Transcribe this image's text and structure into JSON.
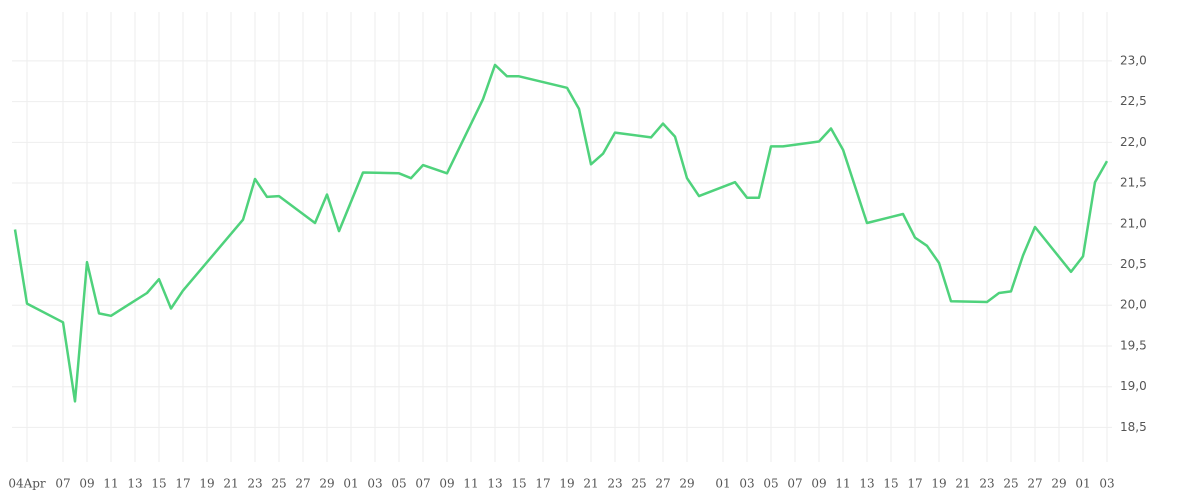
{
  "chart_data": {
    "type": "line",
    "series": [
      {
        "color": "#4fd27c",
        "x": [
          "04-03",
          "04-04",
          "04-07",
          "04-08",
          "04-09",
          "04-10",
          "04-11",
          "04-14",
          "04-15",
          "04-16",
          "04-17",
          "04-22",
          "04-23",
          "04-24",
          "04-25",
          "04-28",
          "04-29",
          "04-30",
          "05-02",
          "05-05",
          "05-06",
          "05-07",
          "05-09",
          "05-12",
          "05-13",
          "05-14",
          "05-15",
          "05-19",
          "05-20",
          "05-21",
          "05-22",
          "05-23",
          "05-26",
          "05-27",
          "05-28",
          "05-29",
          "05-30",
          "06-02",
          "06-03",
          "06-04",
          "06-05",
          "06-06",
          "06-09",
          "06-10",
          "06-11",
          "06-13",
          "06-16",
          "06-17",
          "06-18",
          "06-19",
          "06-20",
          "06-23",
          "06-24",
          "06-25",
          "06-26",
          "06-27",
          "06-30",
          "07-01",
          "07-02",
          "07-03"
        ],
        "values": [
          20.93,
          20.02,
          19.79,
          18.82,
          20.53,
          19.9,
          19.87,
          20.15,
          20.32,
          19.96,
          20.18,
          21.05,
          21.55,
          21.33,
          21.34,
          21.01,
          21.36,
          20.91,
          21.63,
          21.62,
          21.56,
          21.72,
          21.62,
          22.53,
          22.95,
          22.81,
          22.81,
          22.67,
          22.41,
          21.73,
          21.86,
          22.12,
          22.06,
          22.23,
          22.07,
          21.56,
          21.34,
          21.51,
          21.32,
          21.32,
          21.95,
          21.95,
          22.01,
          22.17,
          21.91,
          21.01,
          21.12,
          20.83,
          20.73,
          20.52,
          20.05,
          20.04,
          20.15,
          20.17,
          20.61,
          20.96,
          20.41,
          20.6,
          21.51,
          21.77
        ]
      }
    ],
    "xlim": [
      "04-03",
      "07-03"
    ],
    "xticks": [
      {
        "value": "04-04",
        "label": "04Apr"
      },
      {
        "value": "04-07",
        "label": "07"
      },
      {
        "value": "04-09",
        "label": "09"
      },
      {
        "value": "04-11",
        "label": "11"
      },
      {
        "value": "04-13",
        "label": "13"
      },
      {
        "value": "04-15",
        "label": "15"
      },
      {
        "value": "04-17",
        "label": "17"
      },
      {
        "value": "04-19",
        "label": "19"
      },
      {
        "value": "04-21",
        "label": "21"
      },
      {
        "value": "04-23",
        "label": "23"
      },
      {
        "value": "04-25",
        "label": "25"
      },
      {
        "value": "04-27",
        "label": "27"
      },
      {
        "value": "04-29",
        "label": "29"
      },
      {
        "value": "05-01",
        "label": "01"
      },
      {
        "value": "05-03",
        "label": "03"
      },
      {
        "value": "05-05",
        "label": "05"
      },
      {
        "value": "05-07",
        "label": "07"
      },
      {
        "value": "05-09",
        "label": "09"
      },
      {
        "value": "05-11",
        "label": "11"
      },
      {
        "value": "05-13",
        "label": "13"
      },
      {
        "value": "05-15",
        "label": "15"
      },
      {
        "value": "05-17",
        "label": "17"
      },
      {
        "value": "05-19",
        "label": "19"
      },
      {
        "value": "05-21",
        "label": "21"
      },
      {
        "value": "05-23",
        "label": "23"
      },
      {
        "value": "05-25",
        "label": "25"
      },
      {
        "value": "05-27",
        "label": "27"
      },
      {
        "value": "05-29",
        "label": "29"
      },
      {
        "value": "06-01",
        "label": "01"
      },
      {
        "value": "06-03",
        "label": "03"
      },
      {
        "value": "06-05",
        "label": "05"
      },
      {
        "value": "06-07",
        "label": "07"
      },
      {
        "value": "06-09",
        "label": "09"
      },
      {
        "value": "06-11",
        "label": "11"
      },
      {
        "value": "06-13",
        "label": "13"
      },
      {
        "value": "06-15",
        "label": "15"
      },
      {
        "value": "06-17",
        "label": "17"
      },
      {
        "value": "06-19",
        "label": "19"
      },
      {
        "value": "06-21",
        "label": "21"
      },
      {
        "value": "06-23",
        "label": "23"
      },
      {
        "value": "06-25",
        "label": "25"
      },
      {
        "value": "06-27",
        "label": "27"
      },
      {
        "value": "06-29",
        "label": "29"
      },
      {
        "value": "07-01",
        "label": "01"
      },
      {
        "value": "07-03",
        "label": "03"
      }
    ],
    "ylim": [
      18.1,
      23.6
    ],
    "yticks": [
      {
        "value": 18.5,
        "label": "18,5"
      },
      {
        "value": 19,
        "label": "19,0"
      },
      {
        "value": 19.5,
        "label": "19,5"
      },
      {
        "value": 20,
        "label": "20,0"
      },
      {
        "value": 20.5,
        "label": "20,5"
      },
      {
        "value": 21,
        "label": "21,0"
      },
      {
        "value": 21.5,
        "label": "21,5"
      },
      {
        "value": 22,
        "label": "22,0"
      },
      {
        "value": 22.5,
        "label": "22,5"
      },
      {
        "value": 23,
        "label": "23,0"
      }
    ],
    "y_axis_side": "right",
    "grid": true
  }
}
